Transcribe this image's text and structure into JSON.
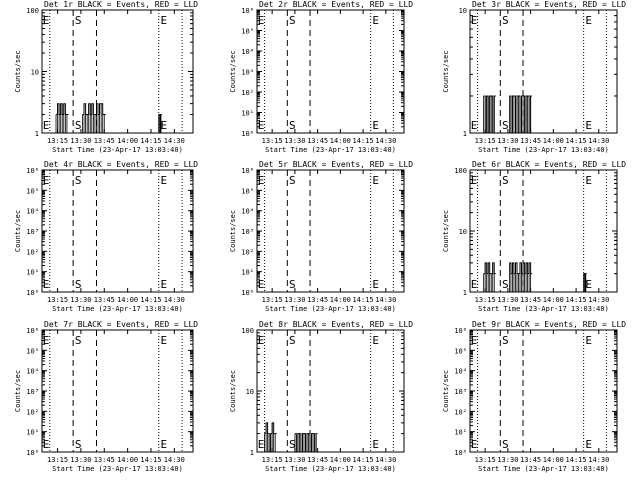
{
  "grid_title_suffix": "BLACK = Events, RED = LLD",
  "start_time_label": "Start Time (23-Apr-17 13:03:40)",
  "y_axis_label": "Counts/sec",
  "x_tick_labels": [
    "13:15",
    "13:30",
    "13:45",
    "14:00",
    "14:15",
    "14:30"
  ],
  "marker_letters": {
    "start": "S",
    "end": "E"
  },
  "chart_data": [
    {
      "type": "line",
      "title": "Det 1r BLACK = Events, RED = LLD",
      "xlabel": "Start Time (23-Apr-17 13:03:40)",
      "ylabel": "Counts/sec",
      "yscale": "log",
      "ylim": [
        1,
        100
      ],
      "y_tick_labels": [
        "1",
        "10",
        "100"
      ],
      "markers": {
        "dotted": [
          "13:10",
          "14:20",
          "14:35"
        ],
        "dashed": [
          "13:25",
          "13:40"
        ],
        "S_at": "13:25",
        "E_at": "14:20"
      },
      "series": [
        {
          "name": "Events",
          "segments": [
            [
              "13:14",
              "13:22",
              [
                2,
                3,
                2,
                3,
                2,
                3,
                2,
                2
              ]
            ],
            [
              "13:31",
              "13:46",
              [
                2,
                3,
                2,
                2,
                3,
                2,
                3,
                2,
                2,
                3,
                2,
                3,
                3,
                2,
                2
              ]
            ],
            [
              "14:20",
              "14:22",
              [
                2,
                1,
                2
              ]
            ]
          ]
        }
      ]
    },
    {
      "type": "line",
      "title": "Det 2r BLACK = Events, RED = LLD",
      "xlabel": "Start Time (23-Apr-17 13:03:40)",
      "ylabel": "Counts/sec",
      "yscale": "log",
      "ylim": [
        1,
        1000000
      ],
      "y_tick_labels": [
        "10⁰",
        "10¹",
        "10²",
        "10³",
        "10⁴",
        "10⁵",
        "10⁶"
      ],
      "markers": {
        "dotted": [
          "13:10",
          "14:20",
          "14:35"
        ],
        "dashed": [
          "13:25",
          "13:40"
        ],
        "S_at": "13:25",
        "E_at": "14:20"
      },
      "series": []
    },
    {
      "type": "line",
      "title": "Det 3r BLACK = Events, RED = LLD",
      "xlabel": "Start Time (23-Apr-17 13:03:40)",
      "ylabel": "Counts/sec",
      "yscale": "log",
      "ylim": [
        1,
        10
      ],
      "y_tick_labels": [
        "1",
        "10"
      ],
      "markers": {
        "dotted": [
          "13:10",
          "14:20",
          "14:35"
        ],
        "dashed": [
          "13:25",
          "13:40"
        ],
        "S_at": "13:25",
        "E_at": "14:20"
      },
      "series": [
        {
          "name": "Events",
          "segments": [
            [
              "13:14",
              "13:22",
              [
                2,
                1,
                2,
                1,
                2,
                2,
                1,
                2
              ]
            ],
            [
              "13:31",
              "13:46",
              [
                2,
                1,
                2,
                2,
                1,
                2,
                2,
                1,
                2,
                2,
                1,
                2,
                2,
                1,
                2
              ]
            ]
          ]
        }
      ]
    },
    {
      "type": "line",
      "title": "Det 4r BLACK = Events, RED = LLD",
      "xlabel": "Start Time (23-Apr-17 13:03:40)",
      "ylabel": "Counts/sec",
      "yscale": "log",
      "ylim": [
        1,
        1000000
      ],
      "y_tick_labels": [
        "10⁰",
        "10¹",
        "10²",
        "10³",
        "10⁴",
        "10⁵",
        "10⁶"
      ],
      "markers": {
        "dotted": [
          "13:10",
          "14:20",
          "14:35"
        ],
        "dashed": [
          "13:25",
          "13:40"
        ],
        "S_at": "13:25",
        "E_at": "14:20"
      },
      "series": []
    },
    {
      "type": "line",
      "title": "Det 5r BLACK = Events, RED = LLD",
      "xlabel": "Start Time (23-Apr-17 13:03:40)",
      "ylabel": "Counts/sec",
      "yscale": "log",
      "ylim": [
        1,
        1000000
      ],
      "y_tick_labels": [
        "10⁰",
        "10¹",
        "10²",
        "10³",
        "10⁴",
        "10⁵",
        "10⁶"
      ],
      "markers": {
        "dotted": [
          "13:10",
          "14:20",
          "14:35"
        ],
        "dashed": [
          "13:25",
          "13:40"
        ],
        "S_at": "13:25",
        "E_at": "14:20"
      },
      "series": []
    },
    {
      "type": "line",
      "title": "Det 6r BLACK = Events, RED = LLD",
      "xlabel": "Start Time (23-Apr-17 13:03:40)",
      "ylabel": "Counts/sec",
      "yscale": "log",
      "ylim": [
        1,
        100
      ],
      "y_tick_labels": [
        "1",
        "10",
        "100"
      ],
      "markers": {
        "dotted": [
          "13:10",
          "14:20",
          "14:35"
        ],
        "dashed": [
          "13:25",
          "13:40"
        ],
        "S_at": "13:25",
        "E_at": "14:20"
      },
      "series": [
        {
          "name": "Events",
          "segments": [
            [
              "13:14",
              "13:22",
              [
                2,
                3,
                2,
                3,
                2,
                2,
                3,
                2
              ]
            ],
            [
              "13:31",
              "13:46",
              [
                3,
                2,
                3,
                2,
                3,
                2,
                2,
                3,
                2,
                3,
                2,
                3,
                2,
                3,
                2
              ]
            ],
            [
              "14:20",
              "14:22",
              [
                2,
                1,
                2
              ]
            ]
          ]
        }
      ]
    },
    {
      "type": "line",
      "title": "Det 7r BLACK = Events, RED = LLD",
      "xlabel": "Start Time (23-Apr-17 13:03:40)",
      "ylabel": "Counts/sec",
      "yscale": "log",
      "ylim": [
        1,
        1000000
      ],
      "y_tick_labels": [
        "10⁰",
        "10¹",
        "10²",
        "10³",
        "10⁴",
        "10⁵",
        "10⁶"
      ],
      "markers": {
        "dotted": [
          "13:10",
          "14:20",
          "14:35"
        ],
        "dashed": [
          "13:25",
          "13:40"
        ],
        "S_at": "13:25",
        "E_at": "14:20"
      },
      "series": []
    },
    {
      "type": "line",
      "title": "Det 8r BLACK = Events, RED = LLD",
      "xlabel": "Start Time (23-Apr-17 13:03:40)",
      "ylabel": "Counts/sec",
      "yscale": "log",
      "ylim": [
        1,
        100
      ],
      "y_tick_labels": [
        "1",
        "10",
        "100"
      ],
      "markers": {
        "dotted": [
          "13:10",
          "14:20",
          "14:35"
        ],
        "dashed": [
          "13:25",
          "13:40"
        ],
        "S_at": "13:25",
        "E_at": "14:20"
      },
      "series": [
        {
          "name": "Events",
          "segments": [
            [
              "13:10",
              "13:18",
              [
                2,
                3,
                2,
                1,
                2,
                3,
                2,
                2
              ]
            ],
            [
              "13:30",
              "13:45",
              [
                2,
                1,
                2,
                2,
                1,
                2,
                2,
                1,
                2,
                2,
                1,
                2,
                2,
                1,
                2
              ]
            ]
          ]
        }
      ]
    },
    {
      "type": "line",
      "title": "Det 9r BLACK = Events, RED = LLD",
      "xlabel": "Start Time (23-Apr-17 13:03:40)",
      "ylabel": "Counts/sec",
      "yscale": "log",
      "ylim": [
        1,
        1000000
      ],
      "y_tick_labels": [
        "10⁰",
        "10¹",
        "10²",
        "10³",
        "10⁴",
        "10⁵",
        "10⁶"
      ],
      "markers": {
        "dotted": [
          "13:10",
          "14:20",
          "14:35"
        ],
        "dashed": [
          "13:25",
          "13:40"
        ],
        "S_at": "13:25",
        "E_at": "14:20"
      },
      "series": []
    }
  ]
}
